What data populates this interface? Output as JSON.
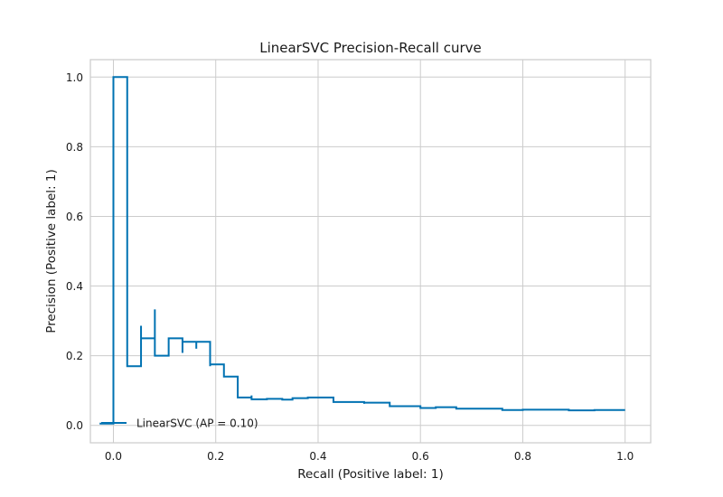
{
  "chart_data": {
    "type": "line",
    "drawstyle": "steps-post",
    "title": "LinearSVC Precision-Recall curve",
    "xlabel": "Recall (Positive label: 1)",
    "ylabel": "Precision (Positive label: 1)",
    "xlim": [
      -0.045,
      1.05
    ],
    "ylim": [
      -0.05,
      1.05
    ],
    "xticks": [
      0.0,
      0.2,
      0.4,
      0.6,
      0.8,
      1.0
    ],
    "xtick_labels": [
      "0.0",
      "0.2",
      "0.4",
      "0.6",
      "0.8",
      "1.0"
    ],
    "yticks": [
      0.0,
      0.2,
      0.4,
      0.6,
      0.8,
      1.0
    ],
    "ytick_labels": [
      "0.0",
      "0.2",
      "0.4",
      "0.6",
      "0.8",
      "1.0"
    ],
    "grid": true,
    "legend": {
      "placement": "lower-left",
      "entries": [
        "LinearSVC (AP = 0.10)"
      ]
    },
    "colors": {
      "line": "#0072b2",
      "grid": "#cccccc",
      "spine": "#cccccc"
    },
    "series": [
      {
        "name": "LinearSVC (AP = 0.10)",
        "recall": [
          -0.027,
          0.0,
          0.0,
          0.027,
          0.027,
          0.054,
          0.054,
          0.081,
          0.081,
          0.108,
          0.108,
          0.135,
          0.135,
          0.162,
          0.162,
          0.189,
          0.189,
          0.216,
          0.216,
          0.243,
          0.243,
          0.27,
          0.27,
          0.297,
          0.3,
          0.33,
          0.35,
          0.38,
          0.4,
          0.43,
          0.43,
          0.46,
          0.49,
          0.49,
          0.54,
          0.54,
          0.6,
          0.6,
          0.63,
          0.67,
          0.67,
          0.73,
          0.76,
          0.76,
          0.8,
          0.86,
          0.89,
          0.94,
          0.97,
          1.0
        ],
        "precision": [
          0.005,
          0.005,
          1.0,
          0.25,
          0.17,
          0.286,
          0.25,
          0.333,
          0.2,
          0.21,
          0.25,
          0.208,
          0.24,
          0.22,
          0.24,
          0.17,
          0.175,
          0.175,
          0.14,
          0.14,
          0.08,
          0.086,
          0.075,
          0.075,
          0.076,
          0.074,
          0.078,
          0.08,
          0.08,
          0.08,
          0.067,
          0.067,
          0.062,
          0.065,
          0.065,
          0.055,
          0.055,
          0.05,
          0.052,
          0.052,
          0.048,
          0.048,
          0.048,
          0.044,
          0.045,
          0.045,
          0.043,
          0.044,
          0.044,
          0.044
        ]
      }
    ]
  }
}
